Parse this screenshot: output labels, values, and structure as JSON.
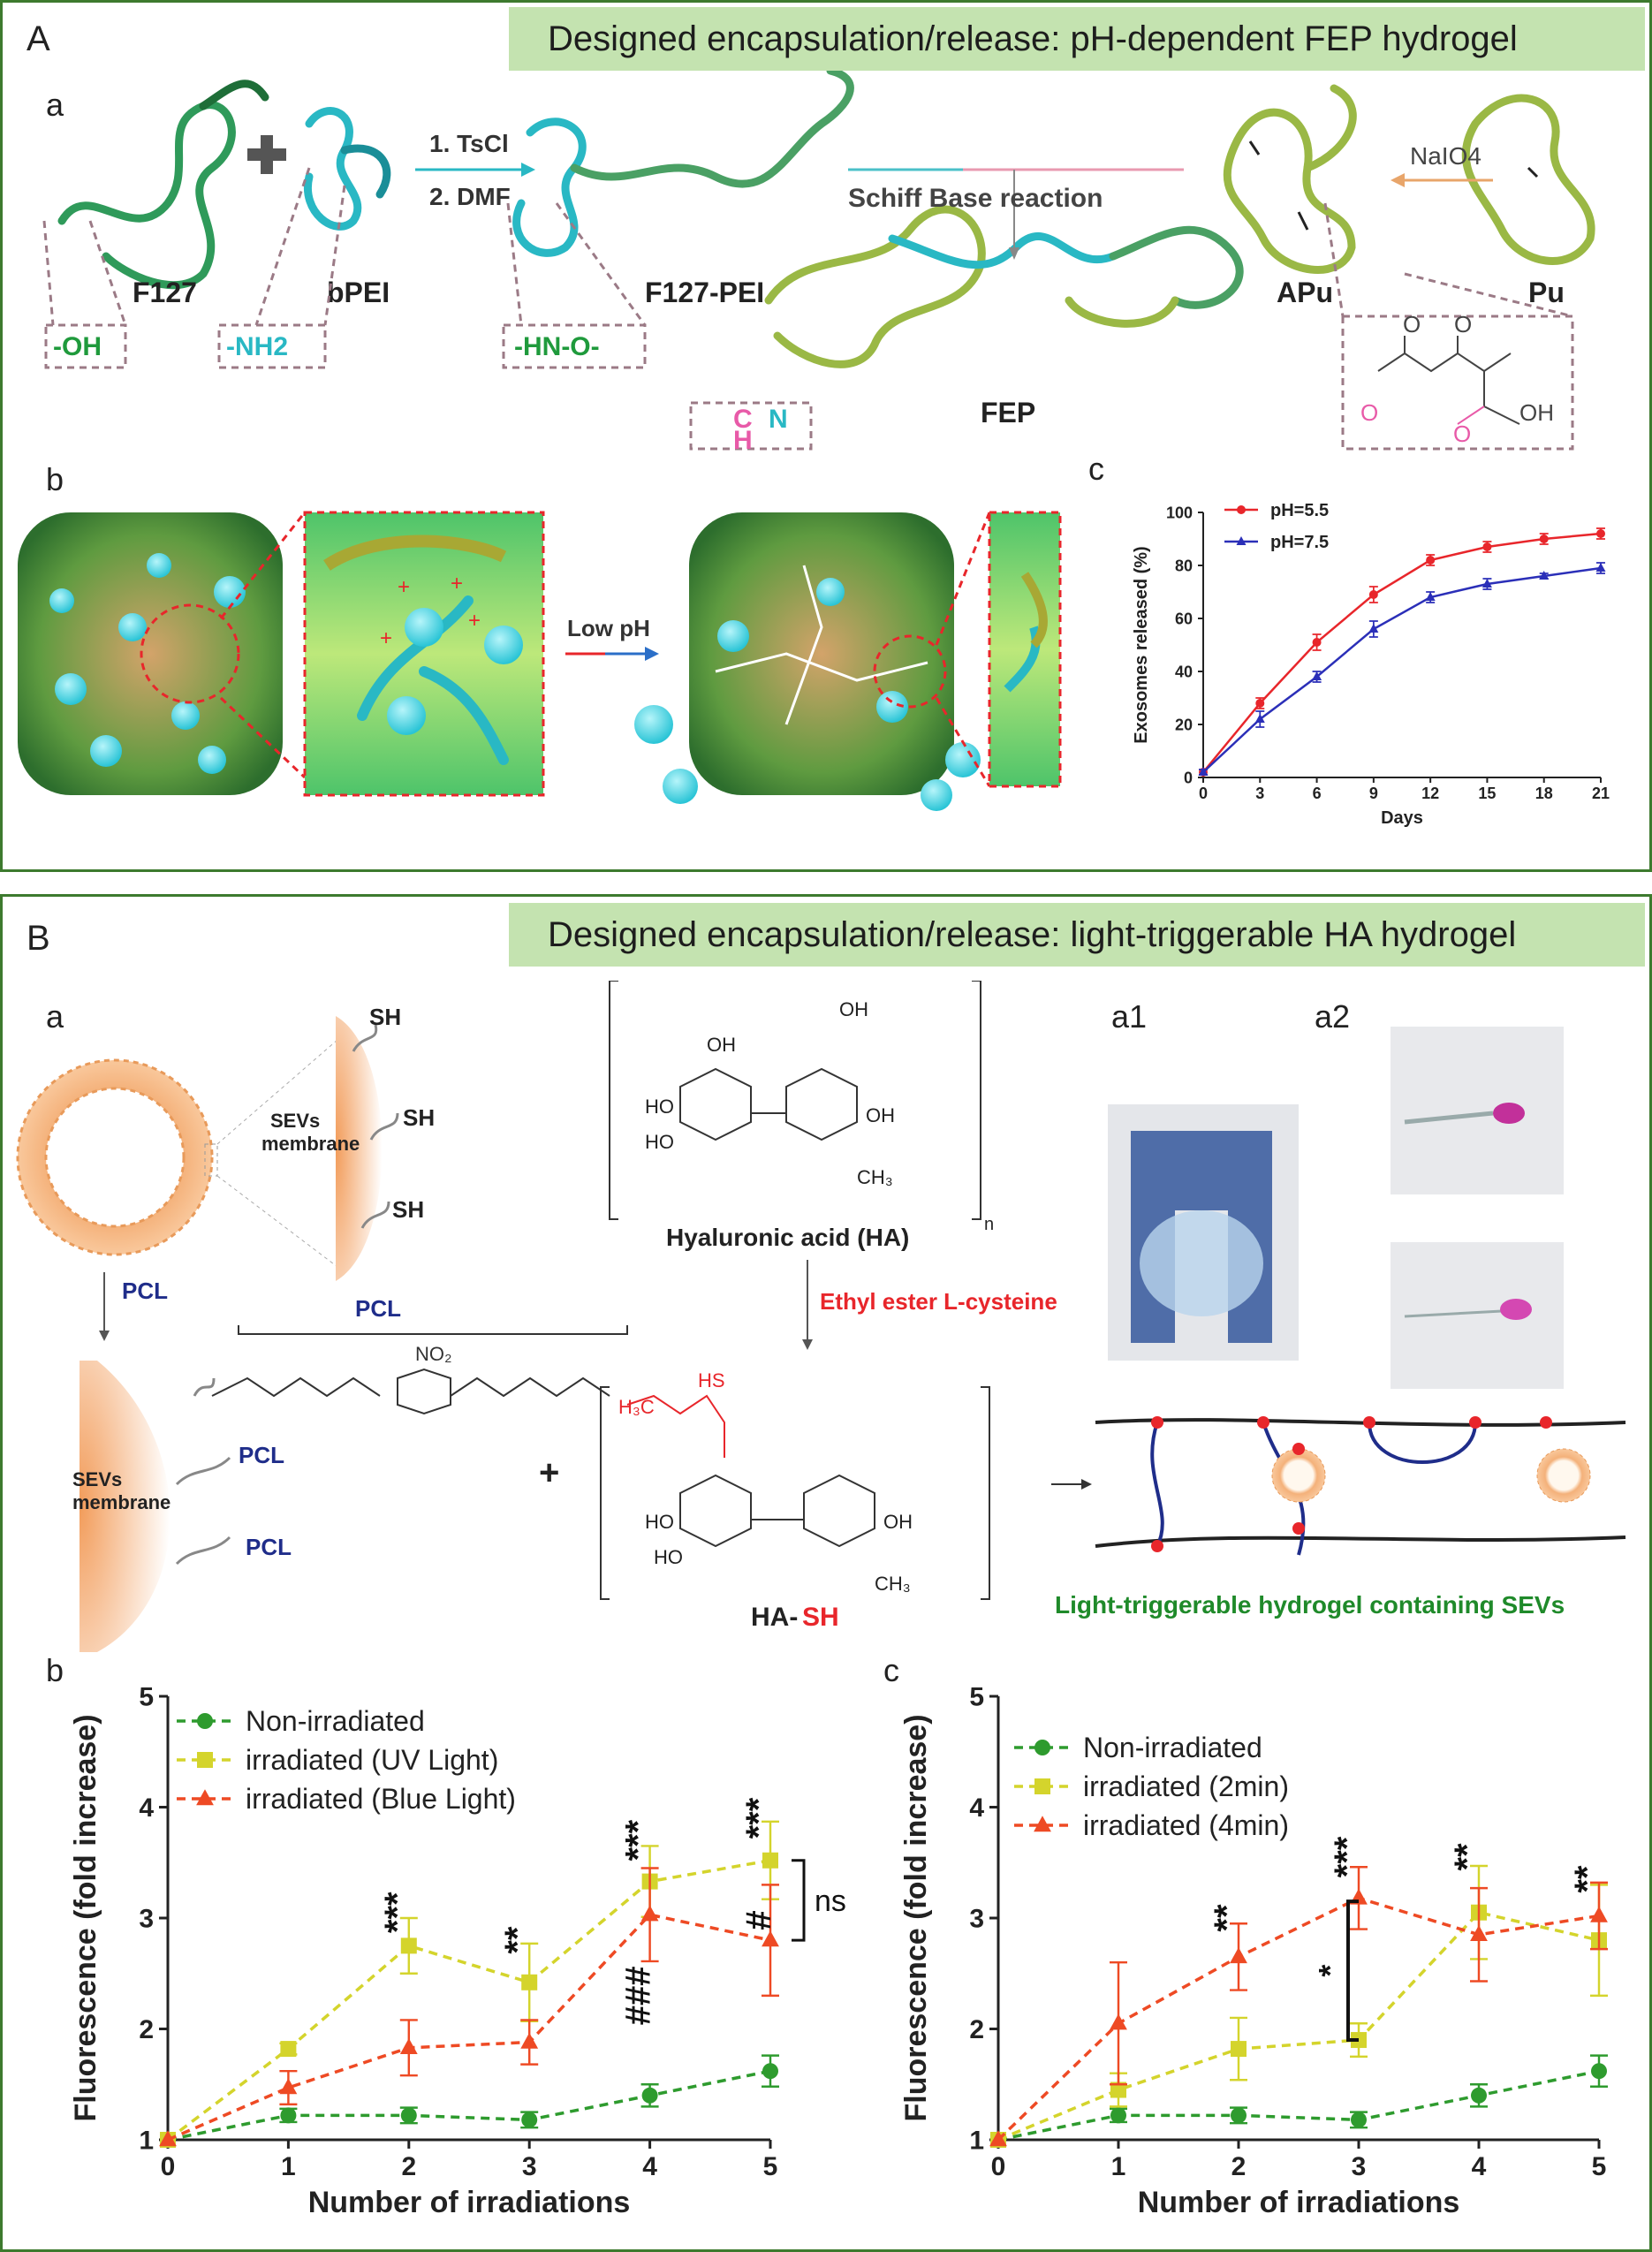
{
  "panel_A": {
    "label": "A",
    "banner": "Designed encapsulation/release:  pH-dependent FEP hydrogel",
    "sub_a": "a",
    "sub_b": "b",
    "sub_c": "c",
    "scheme_a": {
      "f127": "F127",
      "bpei": "bPEI",
      "f127_pei": "F127-PEI",
      "apu": "APu",
      "pu": "Pu",
      "fep": "FEP",
      "oh": "-OH",
      "nh2": "-NH2",
      "hn_o": "-HN-O-",
      "step1": "1. TsCl",
      "step2": "2. DMF",
      "schiff": "Schiff Base reaction",
      "naio4": "NaIO4",
      "ch": "C",
      "ch_h": "H",
      "ch_n": "N"
    },
    "scheme_b": {
      "low_ph": "Low pH"
    }
  },
  "panel_B": {
    "label": "B",
    "banner": "Designed encapsulation/release:  light-triggerable HA hydrogel",
    "sub_a": "a",
    "sub_a1": "a1",
    "sub_a2": "a2",
    "sub_b": "b",
    "sub_c": "c",
    "scheme": {
      "sh": "SH",
      "sevs_membrane_1": "SEVs",
      "sevs_membrane_2": "membrane",
      "pcl": "PCL",
      "ha": "Hyaluronic acid (HA)",
      "ha_n": "n",
      "ethyl": "Ethyl ester L-cysteine",
      "ha_sh_1": "HA-",
      "ha_sh_2": "SH",
      "plus": "+",
      "hydrogel_caption": "Light-triggerable hydrogel containing SEVs"
    }
  },
  "chart_data": [
    {
      "id": "A-c",
      "type": "line",
      "xlabel": "Days",
      "ylabel": "Exosomes released (%)",
      "x": [
        0,
        3,
        6,
        9,
        12,
        15,
        18,
        21
      ],
      "xlim": [
        0,
        21
      ],
      "ylim": [
        0,
        100
      ],
      "yticks": [
        0,
        20,
        40,
        60,
        80,
        100
      ],
      "legend_position": "top-left",
      "series": [
        {
          "name": "pH=5.5",
          "color": "#e8262b",
          "marker": "circle",
          "values": [
            2,
            28,
            51,
            69,
            82,
            87,
            90,
            92
          ],
          "errors": [
            1,
            2,
            3,
            3,
            2,
            2,
            2,
            2
          ]
        },
        {
          "name": "pH=7.5",
          "color": "#2b2fb8",
          "marker": "triangle",
          "values": [
            2,
            22,
            38,
            56,
            68,
            73,
            76,
            79
          ],
          "errors": [
            1,
            3,
            2,
            3,
            2,
            2,
            1,
            2
          ]
        }
      ]
    },
    {
      "id": "B-b",
      "type": "line",
      "xlabel": "Number of irradiations",
      "ylabel": "Fluorescence (fold increase)",
      "x": [
        0,
        1,
        2,
        3,
        4,
        5
      ],
      "xlim": [
        0,
        5
      ],
      "ylim": [
        1,
        5
      ],
      "yticks": [
        1,
        2,
        3,
        4,
        5
      ],
      "legend_position": "top-left",
      "series": [
        {
          "name": "Non-irradiated",
          "color": "#2e9b2e",
          "marker": "circle",
          "values": [
            1,
            1.22,
            1.22,
            1.18,
            1.4,
            1.62
          ],
          "errors": [
            0,
            0.06,
            0.07,
            0.07,
            0.1,
            0.14
          ]
        },
        {
          "name": "irradiated (UV Light)",
          "color": "#d4d42c",
          "marker": "square",
          "values": [
            1,
            1.82,
            2.75,
            2.42,
            3.33,
            3.52
          ],
          "errors": [
            0,
            0.05,
            0.25,
            0.35,
            0.32,
            0.35
          ]
        },
        {
          "name": "irradiated (Blue Light)",
          "color": "#ee4a24",
          "marker": "triangle",
          "values": [
            1,
            1.47,
            1.83,
            1.88,
            3.03,
            2.8
          ],
          "errors": [
            0,
            0.15,
            0.25,
            0.2,
            0.42,
            0.5
          ]
        }
      ],
      "annotations": [
        {
          "x": 2,
          "text": "***",
          "y": 3.05
        },
        {
          "x": 3,
          "text": "**",
          "y": 2.8
        },
        {
          "x": 4,
          "text": "***",
          "y": 3.7
        },
        {
          "x": 4,
          "text": "###",
          "y": 2.3,
          "rotated": true
        },
        {
          "x": 5,
          "text": "***",
          "y": 3.9
        },
        {
          "x": 5,
          "text": "#",
          "y": 2.98
        }
      ],
      "bracket": {
        "text": "ns",
        "y_top": 3.52,
        "y_bottom": 2.8
      }
    },
    {
      "id": "B-c",
      "type": "line",
      "xlabel": "Number of irradiations",
      "ylabel": "Fluorescence (fold increase)",
      "x": [
        0,
        1,
        2,
        3,
        4,
        5
      ],
      "xlim": [
        0,
        5
      ],
      "ylim": [
        1,
        5
      ],
      "yticks": [
        1,
        2,
        3,
        4,
        5
      ],
      "legend_position": "top-left",
      "series": [
        {
          "name": "Non-irradiated",
          "color": "#2e9b2e",
          "marker": "circle",
          "values": [
            1,
            1.22,
            1.22,
            1.18,
            1.4,
            1.62
          ],
          "errors": [
            0,
            0.06,
            0.07,
            0.07,
            0.1,
            0.14
          ]
        },
        {
          "name": "irradiated (2min)",
          "color": "#d4d42c",
          "marker": "square",
          "values": [
            1,
            1.45,
            1.82,
            1.9,
            3.05,
            2.8
          ],
          "errors": [
            0,
            0.15,
            0.28,
            0.15,
            0.42,
            0.5
          ]
        },
        {
          "name": "irradiated (4min)",
          "color": "#ee4a24",
          "marker": "triangle",
          "values": [
            1,
            2.05,
            2.65,
            3.18,
            2.85,
            3.02
          ],
          "errors": [
            0,
            0.55,
            0.3,
            0.28,
            0.42,
            0.3
          ]
        }
      ],
      "annotations": [
        {
          "x": 2,
          "text": "**",
          "y": 3.0
        },
        {
          "x": 3,
          "text": "***",
          "y": 3.55
        },
        {
          "x": 4,
          "text": "**",
          "y": 3.55
        },
        {
          "x": 5,
          "text": "**",
          "y": 3.35
        }
      ],
      "bracket": {
        "text": "*",
        "y_top": 3.15,
        "y_bottom": 1.9
      }
    }
  ]
}
